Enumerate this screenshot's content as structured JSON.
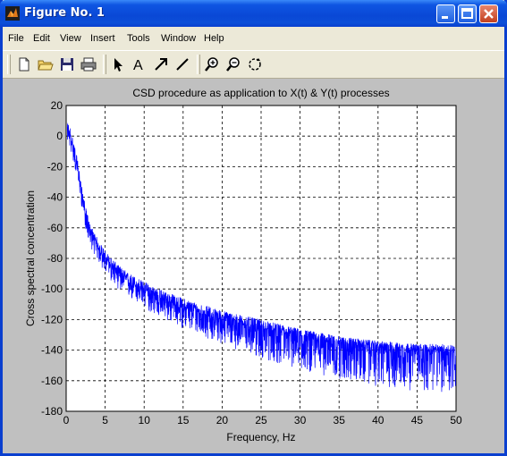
{
  "window": {
    "title": "Figure No. 1"
  },
  "menu": [
    "File",
    "Edit",
    "View",
    "Insert",
    "Tools",
    "Window",
    "Help"
  ],
  "toolbar": {
    "icons": [
      "new-file-icon",
      "open-folder-icon",
      "save-icon",
      "print-icon",
      "arrow-select-icon",
      "text-insert-icon",
      "arrow-insert-icon",
      "line-insert-icon",
      "zoom-in-icon",
      "zoom-out-icon",
      "rotate-icon"
    ],
    "text_tool_label": "A"
  },
  "chart_data": {
    "type": "line",
    "title": "CSD procedure as application to X(t) & Y(t) processes",
    "xlabel": "Frequency, Hz",
    "ylabel": "Cross spectral concentration",
    "xlim": [
      0,
      50
    ],
    "ylim": [
      -180,
      20
    ],
    "xticks": [
      "0",
      "5",
      "10",
      "15",
      "20",
      "25",
      "30",
      "35",
      "40",
      "45",
      "50"
    ],
    "yticks": [
      "20",
      "0",
      "-20",
      "-40",
      "-60",
      "-80",
      "-100",
      "-120",
      "-140",
      "-160",
      "-180"
    ],
    "grid": true,
    "line_color": "#0000ff",
    "series": [
      {
        "x": [
          0,
          0.5,
          1,
          1.5,
          2,
          2.5,
          3,
          4,
          5,
          6,
          7,
          8,
          10,
          12,
          15,
          18,
          20,
          25,
          30,
          35,
          40,
          45,
          50
        ],
        "y": [
          5,
          0,
          -10,
          -22,
          -38,
          -52,
          -62,
          -72,
          -80,
          -86,
          -91,
          -95,
          -101,
          -106,
          -112,
          -117,
          -120,
          -126,
          -131,
          -135,
          -138,
          -140,
          -141
        ]
      }
    ],
    "noise_amplitude_down": [
      8,
      10,
      12,
      14,
      16,
      20,
      22,
      24,
      26,
      27,
      28
    ],
    "noise_amplitude_up": [
      6,
      5,
      6,
      6,
      6,
      6,
      5,
      4,
      4,
      4,
      5
    ]
  }
}
